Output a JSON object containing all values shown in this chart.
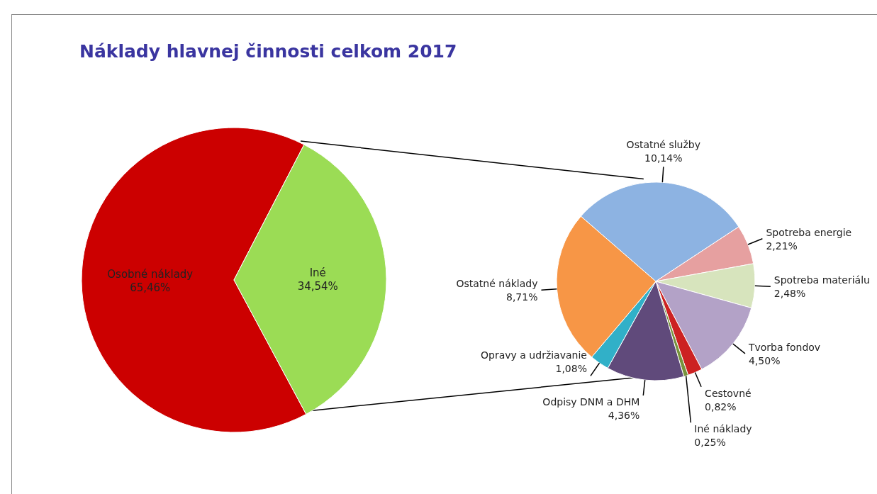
{
  "chart_data": [
    {
      "type": "pie",
      "title": "Náklady hlavnej činnosti celkom 2017",
      "categories": [
        "Osobné náklady",
        "Iné"
      ],
      "values": [
        65.46,
        34.54
      ],
      "colors": [
        "#cc0000",
        "#9bdc55"
      ],
      "value_labels": [
        "65,46%",
        "34,54%"
      ]
    },
    {
      "type": "pie",
      "categories": [
        "Ostatné služby",
        "Spotreba energie",
        "Spotreba materiálu",
        "Tvorba fondov",
        "Cestovné",
        "Iné náklady",
        "Odpisy DNM a DHM",
        "Opravy a udržiavanie",
        "Ostatné náklady"
      ],
      "values": [
        10.14,
        2.21,
        2.48,
        4.5,
        0.82,
        0.25,
        4.36,
        1.08,
        8.71
      ],
      "colors": [
        "#8db3e2",
        "#e6a0a0",
        "#d7e4bd",
        "#b3a2c7",
        "#cc2222",
        "#77933c",
        "#604a7b",
        "#31b0c8",
        "#f79646"
      ],
      "value_labels": [
        "10,14%",
        "2,21%",
        "2,48%",
        "4,50%",
        "0,82%",
        "0,25%",
        "4,36%",
        "1,08%",
        "8,71%"
      ]
    }
  ]
}
